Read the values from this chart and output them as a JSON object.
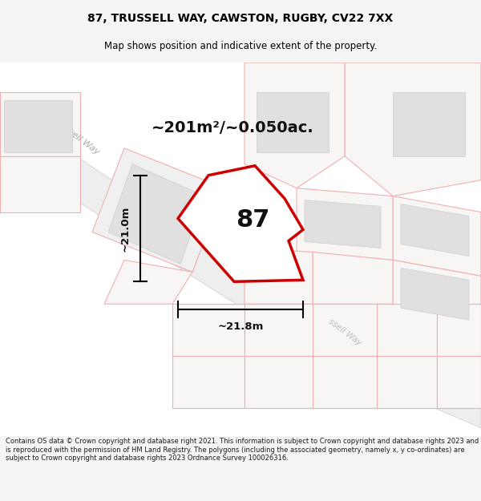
{
  "title_line1": "87, TRUSSELL WAY, CAWSTON, RUGBY, CV22 7XX",
  "title_line2": "Map shows position and indicative extent of the property.",
  "area_text": "~201m²/~0.050ac.",
  "dim_height": "~21.0m",
  "dim_width": "~21.8m",
  "plot_number": "87",
  "footer_text": "Contains OS data © Crown copyright and database right 2021. This information is subject to Crown copyright and database rights 2023 and is reproduced with the permission of HM Land Registry. The polygons (including the associated geometry, namely x, y co-ordinates) are subject to Crown copyright and database rights 2023 Ordnance Survey 100026316.",
  "bg_color": "#f5f5f5",
  "map_bg": "#ffffff",
  "plot_stroke": "#cc0000",
  "title_color": "#000000"
}
